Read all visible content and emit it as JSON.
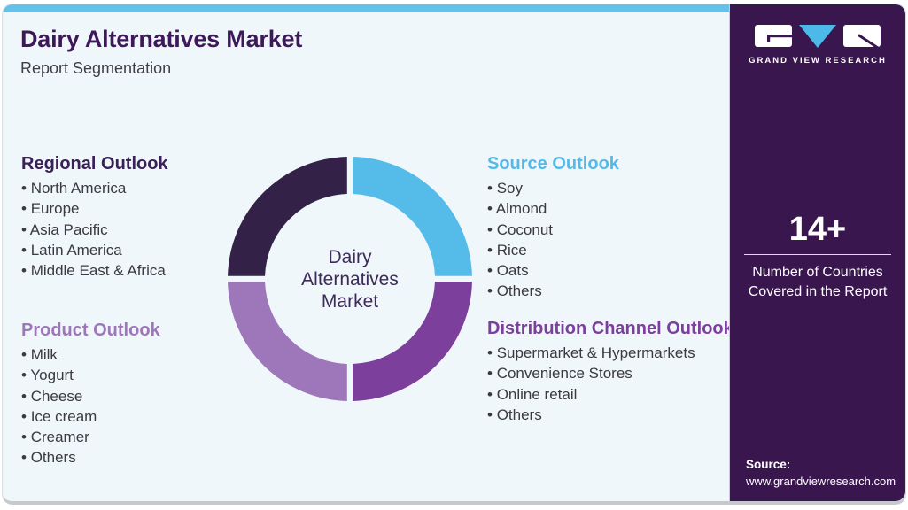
{
  "header": {
    "title": "Dairy Alternatives Market",
    "subtitle": "Report Segmentation"
  },
  "sections": [
    {
      "id": "regional",
      "title": "Regional Outlook",
      "color": "#3b2157",
      "items": [
        "North America",
        "Europe",
        "Asia Pacific",
        "Latin America",
        "Middle East & Africa"
      ]
    },
    {
      "id": "product",
      "title": "Product Outlook",
      "color": "#9e76ba",
      "items": [
        "Milk",
        "Yogurt",
        "Cheese",
        "Ice cream",
        "Creamer",
        "Others"
      ]
    },
    {
      "id": "source",
      "title": "Source Outlook",
      "color": "#55b9e8",
      "items": [
        "Soy",
        "Almond",
        "Coconut",
        "Rice",
        "Oats",
        "Others"
      ]
    },
    {
      "id": "distribution",
      "title": "Distribution Channel Outlook",
      "color": "#7c3f9c",
      "items": [
        "Supermarket & Hypermarkets",
        "Convenience Stores",
        "Online retail",
        "Others"
      ]
    }
  ],
  "chart_data": {
    "type": "pie",
    "variant": "donut",
    "center_label": "Dairy\nAlternatives\nMarket",
    "start_angle_deg": 0,
    "clockwise": true,
    "gap_color": "#f0f7fb",
    "segments": [
      {
        "id": "source",
        "label": "Source Outlook",
        "value": 25,
        "color": "#55bce9"
      },
      {
        "id": "distribution",
        "label": "Distribution Channel Outlook",
        "value": 25,
        "color": "#7c3f9c"
      },
      {
        "id": "product",
        "label": "Product Outlook",
        "value": 25,
        "color": "#9e76ba"
      },
      {
        "id": "regional",
        "label": "Regional Outlook",
        "value": 25,
        "color": "#342147"
      }
    ]
  },
  "sidebar": {
    "logo_text": "GRAND VIEW RESEARCH",
    "stat_value": "14+",
    "stat_label": "Number of Countries Covered in the Report",
    "source_label": "Source:",
    "source_url": "www.grandviewresearch.com",
    "bg_color": "#3a164f",
    "accent_color": "#63c1ea"
  }
}
